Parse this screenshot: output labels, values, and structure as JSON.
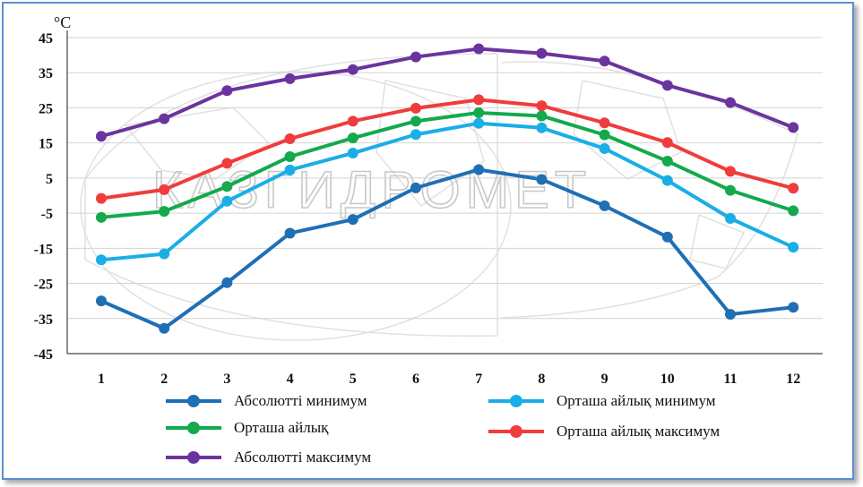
{
  "chart_data": {
    "type": "line",
    "unit_label": "°C",
    "categories": [
      "1",
      "2",
      "3",
      "4",
      "5",
      "6",
      "7",
      "8",
      "9",
      "10",
      "11",
      "12"
    ],
    "yticks": [
      "45",
      "35",
      "25",
      "15",
      "5",
      "-5",
      "-15",
      "-25",
      "-35",
      "-45"
    ],
    "ylim": [
      -45,
      45
    ],
    "grid": true,
    "legend_position": "bottom",
    "watermark_text": "КАЗГИДРОМЕТ",
    "series": [
      {
        "name": "Абсолютті минимум",
        "color": "#1f6fb5",
        "values": [
          -30,
          -37.8,
          -24.8,
          -10.7,
          -6.8,
          2.2,
          7.4,
          4.6,
          -2.9,
          -11.8,
          -33.8,
          -31.8
        ]
      },
      {
        "name": "Орташа айлық минимум",
        "color": "#1aaee6",
        "values": [
          -18.3,
          -16.6,
          -1.6,
          7.3,
          12.1,
          17.4,
          20.6,
          19.3,
          13.4,
          4.3,
          -6.5,
          -14.7
        ]
      },
      {
        "name": "Орташа айлық",
        "color": "#13a94c",
        "values": [
          -6.2,
          -4.5,
          2.6,
          11.1,
          16.4,
          21.2,
          23.6,
          22.7,
          17.3,
          9.8,
          1.5,
          -4.3
        ]
      },
      {
        "name": "Орташа айлық максимум",
        "color": "#f03c3c",
        "values": [
          -0.8,
          1.7,
          9.2,
          16.2,
          21.2,
          24.9,
          27.3,
          25.6,
          20.7,
          15.1,
          6.9,
          2.1
        ]
      },
      {
        "name": "Абсолютті максимум",
        "color": "#6a349e",
        "values": [
          16.9,
          21.9,
          29.9,
          33.3,
          35.9,
          39.5,
          41.8,
          40.5,
          38.3,
          31.4,
          26.5,
          19.4
        ]
      }
    ]
  }
}
